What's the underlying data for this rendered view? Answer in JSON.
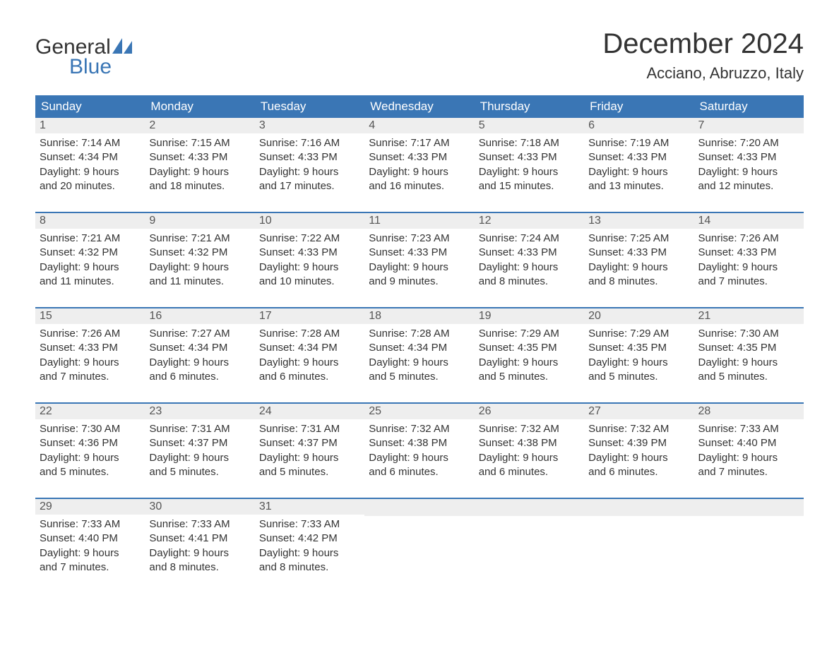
{
  "brand": {
    "text1": "General",
    "text2": "Blue",
    "sail_color": "#3a76b5"
  },
  "title": "December 2024",
  "location": "Acciano, Abruzzo, Italy",
  "colors": {
    "header_bg": "#3a76b5",
    "header_text": "#ffffff",
    "daynum_bg": "#eeeeee",
    "week_border": "#3a76b5",
    "body_text": "#333333"
  },
  "day_headers": [
    "Sunday",
    "Monday",
    "Tuesday",
    "Wednesday",
    "Thursday",
    "Friday",
    "Saturday"
  ],
  "weeks": [
    [
      {
        "n": "1",
        "sunrise": "7:14 AM",
        "sunset": "4:34 PM",
        "daylight1": "Daylight: 9 hours",
        "daylight2": "and 20 minutes."
      },
      {
        "n": "2",
        "sunrise": "7:15 AM",
        "sunset": "4:33 PM",
        "daylight1": "Daylight: 9 hours",
        "daylight2": "and 18 minutes."
      },
      {
        "n": "3",
        "sunrise": "7:16 AM",
        "sunset": "4:33 PM",
        "daylight1": "Daylight: 9 hours",
        "daylight2": "and 17 minutes."
      },
      {
        "n": "4",
        "sunrise": "7:17 AM",
        "sunset": "4:33 PM",
        "daylight1": "Daylight: 9 hours",
        "daylight2": "and 16 minutes."
      },
      {
        "n": "5",
        "sunrise": "7:18 AM",
        "sunset": "4:33 PM",
        "daylight1": "Daylight: 9 hours",
        "daylight2": "and 15 minutes."
      },
      {
        "n": "6",
        "sunrise": "7:19 AM",
        "sunset": "4:33 PM",
        "daylight1": "Daylight: 9 hours",
        "daylight2": "and 13 minutes."
      },
      {
        "n": "7",
        "sunrise": "7:20 AM",
        "sunset": "4:33 PM",
        "daylight1": "Daylight: 9 hours",
        "daylight2": "and 12 minutes."
      }
    ],
    [
      {
        "n": "8",
        "sunrise": "7:21 AM",
        "sunset": "4:32 PM",
        "daylight1": "Daylight: 9 hours",
        "daylight2": "and 11 minutes."
      },
      {
        "n": "9",
        "sunrise": "7:21 AM",
        "sunset": "4:32 PM",
        "daylight1": "Daylight: 9 hours",
        "daylight2": "and 11 minutes."
      },
      {
        "n": "10",
        "sunrise": "7:22 AM",
        "sunset": "4:33 PM",
        "daylight1": "Daylight: 9 hours",
        "daylight2": "and 10 minutes."
      },
      {
        "n": "11",
        "sunrise": "7:23 AM",
        "sunset": "4:33 PM",
        "daylight1": "Daylight: 9 hours",
        "daylight2": "and 9 minutes."
      },
      {
        "n": "12",
        "sunrise": "7:24 AM",
        "sunset": "4:33 PM",
        "daylight1": "Daylight: 9 hours",
        "daylight2": "and 8 minutes."
      },
      {
        "n": "13",
        "sunrise": "7:25 AM",
        "sunset": "4:33 PM",
        "daylight1": "Daylight: 9 hours",
        "daylight2": "and 8 minutes."
      },
      {
        "n": "14",
        "sunrise": "7:26 AM",
        "sunset": "4:33 PM",
        "daylight1": "Daylight: 9 hours",
        "daylight2": "and 7 minutes."
      }
    ],
    [
      {
        "n": "15",
        "sunrise": "7:26 AM",
        "sunset": "4:33 PM",
        "daylight1": "Daylight: 9 hours",
        "daylight2": "and 7 minutes."
      },
      {
        "n": "16",
        "sunrise": "7:27 AM",
        "sunset": "4:34 PM",
        "daylight1": "Daylight: 9 hours",
        "daylight2": "and 6 minutes."
      },
      {
        "n": "17",
        "sunrise": "7:28 AM",
        "sunset": "4:34 PM",
        "daylight1": "Daylight: 9 hours",
        "daylight2": "and 6 minutes."
      },
      {
        "n": "18",
        "sunrise": "7:28 AM",
        "sunset": "4:34 PM",
        "daylight1": "Daylight: 9 hours",
        "daylight2": "and 5 minutes."
      },
      {
        "n": "19",
        "sunrise": "7:29 AM",
        "sunset": "4:35 PM",
        "daylight1": "Daylight: 9 hours",
        "daylight2": "and 5 minutes."
      },
      {
        "n": "20",
        "sunrise": "7:29 AM",
        "sunset": "4:35 PM",
        "daylight1": "Daylight: 9 hours",
        "daylight2": "and 5 minutes."
      },
      {
        "n": "21",
        "sunrise": "7:30 AM",
        "sunset": "4:35 PM",
        "daylight1": "Daylight: 9 hours",
        "daylight2": "and 5 minutes."
      }
    ],
    [
      {
        "n": "22",
        "sunrise": "7:30 AM",
        "sunset": "4:36 PM",
        "daylight1": "Daylight: 9 hours",
        "daylight2": "and 5 minutes."
      },
      {
        "n": "23",
        "sunrise": "7:31 AM",
        "sunset": "4:37 PM",
        "daylight1": "Daylight: 9 hours",
        "daylight2": "and 5 minutes."
      },
      {
        "n": "24",
        "sunrise": "7:31 AM",
        "sunset": "4:37 PM",
        "daylight1": "Daylight: 9 hours",
        "daylight2": "and 5 minutes."
      },
      {
        "n": "25",
        "sunrise": "7:32 AM",
        "sunset": "4:38 PM",
        "daylight1": "Daylight: 9 hours",
        "daylight2": "and 6 minutes."
      },
      {
        "n": "26",
        "sunrise": "7:32 AM",
        "sunset": "4:38 PM",
        "daylight1": "Daylight: 9 hours",
        "daylight2": "and 6 minutes."
      },
      {
        "n": "27",
        "sunrise": "7:32 AM",
        "sunset": "4:39 PM",
        "daylight1": "Daylight: 9 hours",
        "daylight2": "and 6 minutes."
      },
      {
        "n": "28",
        "sunrise": "7:33 AM",
        "sunset": "4:40 PM",
        "daylight1": "Daylight: 9 hours",
        "daylight2": "and 7 minutes."
      }
    ],
    [
      {
        "n": "29",
        "sunrise": "7:33 AM",
        "sunset": "4:40 PM",
        "daylight1": "Daylight: 9 hours",
        "daylight2": "and 7 minutes."
      },
      {
        "n": "30",
        "sunrise": "7:33 AM",
        "sunset": "4:41 PM",
        "daylight1": "Daylight: 9 hours",
        "daylight2": "and 8 minutes."
      },
      {
        "n": "31",
        "sunrise": "7:33 AM",
        "sunset": "4:42 PM",
        "daylight1": "Daylight: 9 hours",
        "daylight2": "and 8 minutes."
      },
      null,
      null,
      null,
      null
    ]
  ],
  "labels": {
    "sunrise_prefix": "Sunrise: ",
    "sunset_prefix": "Sunset: "
  }
}
